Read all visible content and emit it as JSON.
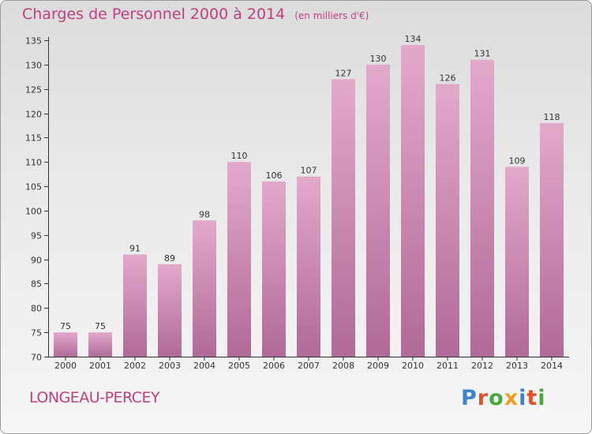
{
  "title": "Charges de Personnel 2000 à 2014",
  "unit_note": "(en milliers d'€)",
  "commune": "LONGEAU-PERCEY",
  "logo": {
    "text": "Proxiti",
    "letter_colors": [
      "#3a86c8",
      "#e0502a",
      "#46a83c",
      "#f0a020",
      "#3a86c8",
      "#e0502a",
      "#46a83c"
    ]
  },
  "colors": {
    "bar_top": "#e3a9cb",
    "bar_bottom": "#b06a97",
    "text_accent": "#c0407e",
    "axis": "#333333"
  },
  "chart_data": {
    "type": "bar",
    "title": "Charges de Personnel 2000 à 2014",
    "subtitle": "(en milliers d'€)",
    "categories": [
      "2000",
      "2001",
      "2002",
      "2003",
      "2004",
      "2005",
      "2006",
      "2007",
      "2008",
      "2009",
      "2010",
      "2011",
      "2012",
      "2013",
      "2014"
    ],
    "values": [
      75,
      75,
      91,
      89,
      98,
      110,
      106,
      107,
      127,
      130,
      134,
      126,
      131,
      109,
      118
    ],
    "ylim": [
      70,
      135
    ],
    "yticks": [
      70,
      75,
      80,
      85,
      90,
      95,
      100,
      105,
      110,
      115,
      120,
      125,
      130,
      135
    ],
    "grid": false,
    "legend": "none"
  }
}
